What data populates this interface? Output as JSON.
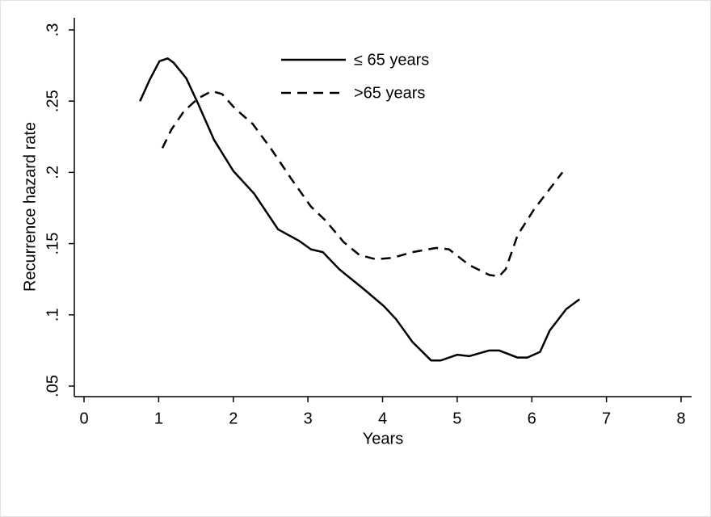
{
  "chart_data": {
    "type": "line",
    "x_label": "Years",
    "y_label": "Recurrence hazard rate",
    "xlim": [
      -0.13,
      8.13
    ],
    "ylim": [
      0.0426,
      0.3085
    ],
    "xticks": [
      0,
      1,
      2,
      3,
      4,
      5,
      6,
      7,
      8
    ],
    "yticks": [
      {
        "value": 0.05,
        "label": ".05"
      },
      {
        "value": 0.1,
        "label": ".1"
      },
      {
        "value": 0.15,
        "label": ".15"
      },
      {
        "value": 0.2,
        "label": ".2"
      },
      {
        "value": 0.25,
        "label": ".25"
      },
      {
        "value": 0.3,
        "label": ".3"
      }
    ],
    "grid": false,
    "series": [
      {
        "name": "≤ 65 years",
        "color": "#000000",
        "dash": "solid",
        "x": [
          0.75,
          0.88,
          1.01,
          1.12,
          1.2,
          1.37,
          1.53,
          1.74,
          2.0,
          2.28,
          2.6,
          2.88,
          3.04,
          3.2,
          3.42,
          3.75,
          4.02,
          4.18,
          4.4,
          4.65,
          4.78,
          5.0,
          5.16,
          5.43,
          5.56,
          5.81,
          5.94,
          6.11,
          6.24,
          6.46,
          6.64
        ],
        "values": [
          0.25,
          0.265,
          0.278,
          0.28,
          0.277,
          0.266,
          0.248,
          0.223,
          0.201,
          0.185,
          0.16,
          0.152,
          0.146,
          0.144,
          0.132,
          0.118,
          0.106,
          0.097,
          0.081,
          0.068,
          0.068,
          0.072,
          0.071,
          0.075,
          0.075,
          0.07,
          0.07,
          0.074,
          0.089,
          0.104,
          0.111
        ]
      },
      {
        "name": ">65 years",
        "color": "#000000",
        "dash": "dashed",
        "x": [
          1.05,
          1.17,
          1.34,
          1.53,
          1.71,
          1.85,
          2.02,
          2.26,
          2.5,
          2.77,
          3.04,
          3.24,
          3.48,
          3.69,
          3.91,
          4.13,
          4.4,
          4.72,
          4.89,
          5.16,
          5.43,
          5.56,
          5.65,
          5.81,
          6.03,
          6.41
        ],
        "values": [
          0.217,
          0.23,
          0.243,
          0.252,
          0.257,
          0.255,
          0.245,
          0.234,
          0.217,
          0.196,
          0.176,
          0.166,
          0.151,
          0.142,
          0.139,
          0.14,
          0.144,
          0.147,
          0.146,
          0.135,
          0.128,
          0.127,
          0.132,
          0.156,
          0.174,
          0.2
        ]
      }
    ]
  }
}
